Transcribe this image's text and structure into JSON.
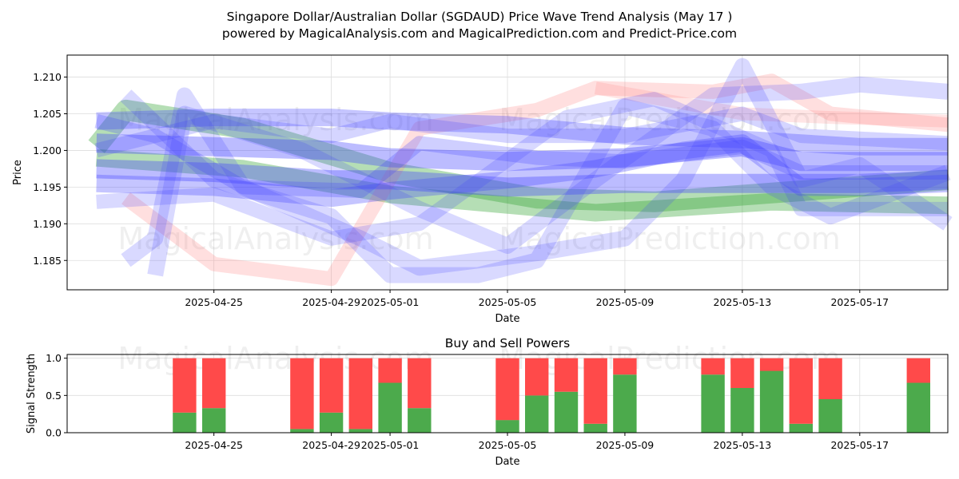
{
  "chart_data": [
    {
      "type": "line",
      "title": "Singapore Dollar/Australian Dollar (SGDAUD) Price Wave Trend Analysis (May 17 )",
      "subtitle": "powered by MagicalAnalysis.com and MagicalPrediction.com and Predict-Price.com",
      "xlabel": "Date",
      "ylabel": "Price",
      "x_range": [
        "2025-04-20",
        "2025-05-20"
      ],
      "ylim": [
        1.181,
        1.213
      ],
      "yticks": [
        "1.185",
        "1.190",
        "1.195",
        "1.200",
        "1.205",
        "1.210"
      ],
      "xticks": [
        "2025-04-25",
        "2025-04-29",
        "2025-05-01",
        "2025-05-05",
        "2025-05-09",
        "2025-05-13",
        "2025-05-17"
      ],
      "grid": true,
      "watermarks": [
        "MagicalAnalysis.com",
        "MagicalPrediction.com",
        "MagicalAnalysis.com",
        "MagicalPrediction.com"
      ],
      "colors": {
        "green": "#2ca02c",
        "red": "#ff7f7f",
        "blue": "#4040ff"
      },
      "bands": [
        {
          "color": "green",
          "opacity": 0.35,
          "width": 26,
          "points": [
            [
              "2025-04-21",
              1.2005
            ],
            [
              "2025-04-22",
              1.2055
            ],
            [
              "2025-04-26",
              1.203
            ],
            [
              "2025-05-01",
              1.197
            ],
            [
              "2025-05-06",
              1.1935
            ],
            [
              "2025-05-10",
              1.193
            ],
            [
              "2025-05-15",
              1.1945
            ],
            [
              "2025-05-20",
              1.196
            ]
          ]
        },
        {
          "color": "green",
          "opacity": 0.35,
          "width": 22,
          "points": [
            [
              "2025-04-21",
              1.199
            ],
            [
              "2025-04-26",
              1.1975
            ],
            [
              "2025-05-01",
              1.194
            ],
            [
              "2025-05-08",
              1.1915
            ],
            [
              "2025-05-14",
              1.193
            ],
            [
              "2025-05-20",
              1.1925
            ]
          ]
        },
        {
          "color": "red",
          "opacity": 0.25,
          "width": 18,
          "points": [
            [
              "2025-04-22",
              1.1935
            ],
            [
              "2025-04-25",
              1.1845
            ],
            [
              "2025-04-29",
              1.1825
            ],
            [
              "2025-05-02",
              1.203
            ],
            [
              "2025-05-06",
              1.2055
            ],
            [
              "2025-05-08",
              1.2085
            ],
            [
              "2025-05-12",
              1.208
            ],
            [
              "2025-05-14",
              1.2095
            ],
            [
              "2025-05-16",
              1.205
            ],
            [
              "2025-05-20",
              1.2035
            ]
          ]
        },
        {
          "color": "red",
          "opacity": 0.2,
          "width": 16,
          "points": [
            [
              "2025-05-08",
              1.2085
            ],
            [
              "2025-05-13",
              1.205
            ],
            [
              "2025-05-16",
              1.2045
            ],
            [
              "2025-05-20",
              1.204
            ]
          ]
        },
        {
          "color": "blue",
          "opacity": 0.2,
          "width": 20,
          "points": [
            [
              "2025-04-22",
              1.185
            ],
            [
              "2025-04-23",
              1.188
            ],
            [
              "2025-04-24",
              1.2075
            ],
            [
              "2025-04-26",
              1.195
            ],
            [
              "2025-04-30",
              1.188
            ],
            [
              "2025-05-02",
              1.184
            ],
            [
              "2025-05-06",
              1.186
            ],
            [
              "2025-05-09",
              1.188
            ],
            [
              "2025-05-11",
              1.196
            ],
            [
              "2025-05-13",
              1.2115
            ],
            [
              "2025-05-15",
              1.196
            ],
            [
              "2025-05-17",
              1.198
            ],
            [
              "2025-05-20",
              1.19
            ]
          ]
        },
        {
          "color": "blue",
          "opacity": 0.2,
          "width": 20,
          "points": [
            [
              "2025-04-22",
              1.2075
            ],
            [
              "2025-04-25",
              1.196
            ],
            [
              "2025-04-29",
              1.191
            ],
            [
              "2025-05-01",
              1.183
            ],
            [
              "2025-05-04",
              1.183
            ],
            [
              "2025-05-06",
              1.185
            ],
            [
              "2025-05-09",
              1.206
            ],
            [
              "2025-05-12",
              1.203
            ],
            [
              "2025-05-14",
              1.195
            ],
            [
              "2025-05-16",
              1.191
            ],
            [
              "2025-05-20",
              1.197
            ]
          ]
        },
        {
          "color": "blue",
          "opacity": 0.2,
          "width": 20,
          "points": [
            [
              "2025-04-23",
              1.183
            ],
            [
              "2025-04-24",
              1.205
            ],
            [
              "2025-04-28",
              1.2
            ],
            [
              "2025-05-02",
              1.192
            ],
            [
              "2025-05-05",
              1.187
            ],
            [
              "2025-05-08",
              1.196
            ],
            [
              "2025-05-12",
              1.2075
            ],
            [
              "2025-05-15",
              1.208
            ],
            [
              "2025-05-17",
              1.209
            ],
            [
              "2025-05-20",
              1.208
            ]
          ]
        },
        {
          "color": "blue",
          "opacity": 0.2,
          "width": 18,
          "points": [
            [
              "2025-04-21",
              1.193
            ],
            [
              "2025-04-25",
              1.194
            ],
            [
              "2025-04-29",
              1.188
            ],
            [
              "2025-05-02",
              1.19
            ],
            [
              "2025-05-07",
              1.2045
            ],
            [
              "2025-05-10",
              1.207
            ],
            [
              "2025-05-14",
              1.2
            ],
            [
              "2025-05-15",
              1.192
            ],
            [
              "2025-05-20",
              1.192
            ]
          ]
        },
        {
          "color": "blue",
          "opacity": 0.22,
          "width": 18,
          "points": [
            [
              "2025-04-21",
              1.2
            ],
            [
              "2025-04-25",
              1.204
            ],
            [
              "2025-04-29",
              1.202
            ],
            [
              "2025-05-01",
              1.204
            ],
            [
              "2025-05-05",
              1.202
            ],
            [
              "2025-05-09",
              1.202
            ],
            [
              "2025-05-13",
              1.205
            ],
            [
              "2025-05-15",
              1.202
            ],
            [
              "2025-05-20",
              1.201
            ]
          ]
        },
        {
          "color": "blue",
          "opacity": 0.3,
          "width": 22,
          "points": [
            [
              "2025-04-21",
              1.204
            ],
            [
              "2025-04-25",
              1.2045
            ],
            [
              "2025-04-29",
              1.2045
            ],
            [
              "2025-05-01",
              1.204
            ],
            [
              "2025-05-05",
              1.2035
            ],
            [
              "2025-05-09",
              1.202
            ],
            [
              "2025-05-13",
              1.2015
            ],
            [
              "2025-05-17",
              1.2005
            ],
            [
              "2025-05-20",
              1.2005
            ]
          ]
        },
        {
          "color": "blue",
          "opacity": 0.35,
          "width": 24,
          "points": [
            [
              "2025-04-21",
              1.201
            ],
            [
              "2025-04-25",
              1.2005
            ],
            [
              "2025-04-29",
              1.2
            ],
            [
              "2025-05-01",
              1.199
            ],
            [
              "2025-05-05",
              1.1985
            ],
            [
              "2025-05-09",
              1.199
            ],
            [
              "2025-05-13",
              1.2005
            ],
            [
              "2025-05-15",
              1.1985
            ],
            [
              "2025-05-20",
              1.1985
            ]
          ]
        },
        {
          "color": "blue",
          "opacity": 0.35,
          "width": 24,
          "points": [
            [
              "2025-04-21",
              1.1975
            ],
            [
              "2025-04-25",
              1.197
            ],
            [
              "2025-04-29",
              1.196
            ],
            [
              "2025-05-01",
              1.196
            ],
            [
              "2025-05-05",
              1.195
            ],
            [
              "2025-05-09",
              1.1955
            ],
            [
              "2025-05-13",
              1.1955
            ],
            [
              "2025-05-17",
              1.1955
            ],
            [
              "2025-05-20",
              1.196
            ]
          ]
        },
        {
          "color": "blue",
          "opacity": 0.3,
          "width": 22,
          "points": [
            [
              "2025-04-21",
              1.1955
            ],
            [
              "2025-04-25",
              1.195
            ],
            [
              "2025-04-29",
              1.1935
            ],
            [
              "2025-05-01",
              1.1945
            ],
            [
              "2025-05-05",
              1.196
            ],
            [
              "2025-05-08",
              1.1975
            ],
            [
              "2025-05-11",
              1.2
            ],
            [
              "2025-05-13",
              1.201
            ],
            [
              "2025-05-15",
              1.195
            ],
            [
              "2025-05-17",
              1.195
            ],
            [
              "2025-05-20",
              1.1955
            ]
          ]
        },
        {
          "color": "blue",
          "opacity": 0.25,
          "width": 18,
          "points": [
            [
              "2025-04-21",
              1.204
            ],
            [
              "2025-04-23",
              1.202
            ],
            [
              "2025-04-26",
              1.195
            ],
            [
              "2025-04-30",
              1.1945
            ],
            [
              "2025-05-02",
              1.201
            ],
            [
              "2025-05-06",
              1.199
            ],
            [
              "2025-05-09",
              1.1985
            ],
            [
              "2025-05-13",
              1.2005
            ],
            [
              "2025-05-15",
              1.197
            ],
            [
              "2025-05-20",
              1.197
            ]
          ]
        }
      ]
    },
    {
      "type": "bar",
      "title": "Buy and Sell Powers",
      "xlabel": "Date",
      "ylabel": "Signal Strength",
      "ylim": [
        0,
        1.05
      ],
      "yticks": [
        "0.0",
        "0.5",
        "1.0"
      ],
      "xticks": [
        "2025-04-25",
        "2025-04-29",
        "2025-05-01",
        "2025-05-05",
        "2025-05-09",
        "2025-05-13",
        "2025-05-17"
      ],
      "watermarks": [
        "MagicalAnalysis.com",
        "MagicalPrediction.com"
      ],
      "colors": {
        "buy": "#4caa4c",
        "sell": "#ff4a4a"
      },
      "categories": [
        "2025-04-24",
        "2025-04-25",
        "2025-04-28",
        "2025-04-29",
        "2025-04-30",
        "2025-05-01",
        "2025-05-02",
        "2025-05-05",
        "2025-05-06",
        "2025-05-07",
        "2025-05-08",
        "2025-05-09",
        "2025-05-12",
        "2025-05-13",
        "2025-05-14",
        "2025-05-15",
        "2025-05-16",
        "2025-05-19"
      ],
      "series": [
        {
          "values": [
            0.27,
            0.33,
            0.05,
            0.27,
            0.05,
            0.67,
            0.33,
            0.17,
            0.5,
            0.55,
            0.12,
            0.78,
            0.78,
            0.6,
            0.83,
            0.12,
            0.45,
            0.67
          ]
        },
        {
          "values": [
            0.73,
            0.67,
            0.95,
            0.73,
            0.95,
            0.33,
            0.67,
            0.83,
            0.5,
            0.45,
            0.88,
            0.22,
            0.22,
            0.4,
            0.17,
            0.88,
            0.55,
            0.33
          ]
        }
      ]
    }
  ]
}
